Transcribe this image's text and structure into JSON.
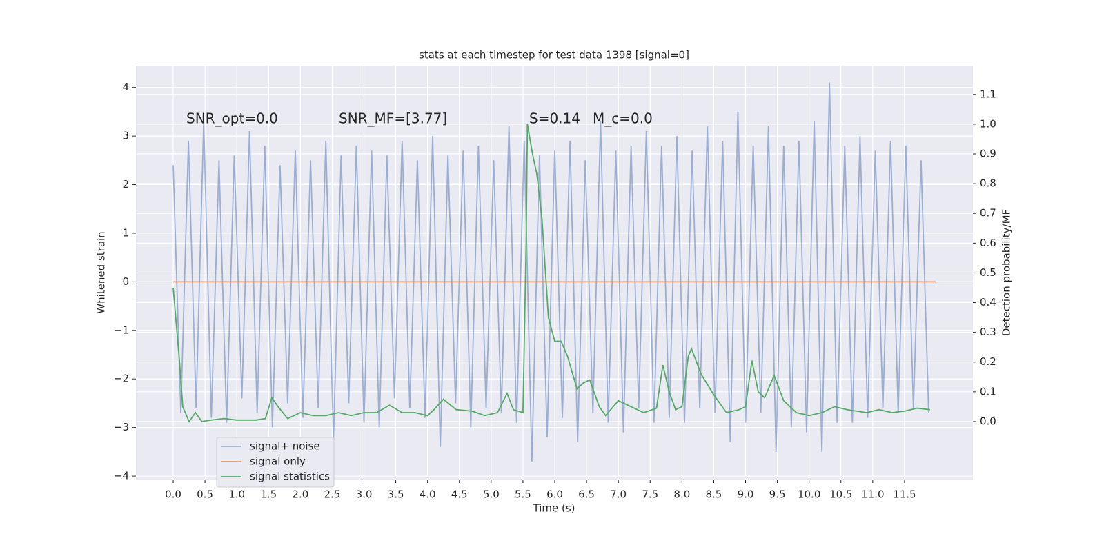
{
  "chart_data": {
    "type": "line",
    "title": "stats at each timestep for test data 1398 [signal=0]",
    "x_label": "Time (s)",
    "y_label": "Whitened strain",
    "y2_label": "Detection probability/MF",
    "annotations": [
      "SNR_opt=0.0",
      "SNR_MF=[3.77]",
      "S=0.14",
      "M_c=0.0"
    ],
    "xlim": [
      -0.586,
      12.575
    ],
    "ylim": [
      -4.07,
      4.45
    ],
    "y2lim": [
      -0.195,
      1.197
    ],
    "xticks": [
      {
        "value": 0,
        "label": "0.0"
      },
      0.5,
      {
        "value": 1,
        "label": "1.0"
      },
      1.5,
      {
        "value": 2,
        "label": "2.0"
      },
      2.5,
      {
        "value": 3,
        "label": "3.0"
      },
      3.5,
      {
        "value": 4,
        "label": "4.0"
      },
      4.5,
      {
        "value": 5,
        "label": "5.0"
      },
      5.5,
      {
        "value": 6,
        "label": "6.0"
      },
      6.5,
      {
        "value": 7,
        "label": "7.0"
      },
      7.5,
      {
        "value": 8,
        "label": "8.0"
      },
      8.5,
      {
        "value": 9,
        "label": "9.0"
      },
      9.5,
      {
        "value": 10,
        "label": "10.0"
      },
      10.5,
      {
        "value": 11,
        "label": "11.0"
      },
      11.5
    ],
    "yticks": [
      {
        "value": -4,
        "label": "−4"
      },
      {
        "value": -3,
        "label": "−3"
      },
      {
        "value": -2,
        "label": "−2"
      },
      {
        "value": -1,
        "label": "−1"
      },
      0,
      1,
      2,
      3,
      4
    ],
    "y2ticks": [
      {
        "value": 0,
        "label": "0.0"
      },
      0.1,
      0.2,
      0.3,
      0.4,
      0.5,
      0.6,
      0.7,
      0.8,
      0.9,
      {
        "value": 1,
        "label": "1.0"
      },
      1.1
    ],
    "grid": true,
    "legend": "lower left",
    "series": [
      {
        "name": "signal+ noise",
        "color": "#4c72b0",
        "opacity": 0.5,
        "x": [
          0,
          0.12,
          0.24,
          0.36,
          0.48,
          0.6,
          0.72,
          0.84,
          0.96,
          1.08,
          1.2,
          1.32,
          1.44,
          1.56,
          1.68,
          1.8,
          1.92,
          2.04,
          2.16,
          2.28,
          2.4,
          2.52,
          2.64,
          2.76,
          2.88,
          3.0,
          3.12,
          3.24,
          3.36,
          3.48,
          3.6,
          3.72,
          3.84,
          3.96,
          4.08,
          4.2,
          4.32,
          4.44,
          4.56,
          4.68,
          4.8,
          4.92,
          5.04,
          5.16,
          5.28,
          5.4,
          5.52,
          5.64,
          5.76,
          5.88,
          6.0,
          6.12,
          6.24,
          6.36,
          6.48,
          6.6,
          6.72,
          6.84,
          6.96,
          7.08,
          7.2,
          7.32,
          7.44,
          7.56,
          7.68,
          7.8,
          7.92,
          8.04,
          8.16,
          8.28,
          8.4,
          8.52,
          8.64,
          8.76,
          8.88,
          9.0,
          9.12,
          9.24,
          9.36,
          9.48,
          9.6,
          9.72,
          9.84,
          9.96,
          10.08,
          10.2,
          10.32,
          10.44,
          10.56,
          10.68,
          10.8,
          10.92,
          11.04,
          11.16,
          11.28,
          11.4,
          11.52,
          11.64,
          11.76,
          11.88
        ],
        "values": [
          2.4,
          -2.7,
          2.9,
          -2.6,
          3.3,
          -2.8,
          2.5,
          -2.9,
          2.6,
          -2.4,
          3.1,
          -2.7,
          2.8,
          -3.0,
          2.4,
          -2.5,
          2.7,
          -2.8,
          2.5,
          -2.6,
          2.9,
          -3.3,
          2.6,
          -2.5,
          2.8,
          -2.9,
          2.7,
          -3.0,
          2.6,
          -2.4,
          2.9,
          -2.6,
          2.5,
          -2.8,
          3.0,
          -3.4,
          2.6,
          -2.5,
          2.7,
          -3.0,
          2.8,
          -2.6,
          2.5,
          -2.7,
          3.2,
          -2.9,
          2.9,
          -3.7,
          2.6,
          -3.2,
          2.7,
          -2.8,
          2.9,
          -3.3,
          2.5,
          -2.7,
          3.3,
          -2.9,
          2.7,
          -3.1,
          2.8,
          -2.6,
          3.1,
          -2.9,
          2.8,
          -2.8,
          3.0,
          -2.9,
          2.7,
          -2.6,
          3.2,
          -2.7,
          2.9,
          -3.3,
          3.5,
          -2.9,
          2.8,
          -2.7,
          3.2,
          -3.5,
          2.8,
          -3.0,
          2.9,
          -3.1,
          3.3,
          -3.5,
          4.1,
          -2.9,
          2.8,
          -2.9,
          3.0,
          -2.8,
          2.7,
          -2.6,
          2.9,
          -2.7,
          2.8,
          -2.6,
          2.5,
          -2.7
        ]
      },
      {
        "name": "signal only",
        "color": "#dd8452",
        "opacity": 0.8,
        "x": [
          0,
          11.99
        ],
        "values": [
          0,
          0
        ]
      },
      {
        "name": "signal statistics",
        "color": "#55a868",
        "opacity": 1,
        "axis": "y2",
        "x": [
          0,
          0.1,
          0.15,
          0.25,
          0.35,
          0.45,
          0.6,
          0.8,
          1.0,
          1.3,
          1.45,
          1.55,
          1.65,
          1.8,
          2.0,
          2.2,
          2.4,
          2.6,
          2.8,
          3.0,
          3.2,
          3.4,
          3.6,
          3.8,
          4.0,
          4.1,
          4.25,
          4.45,
          4.7,
          4.9,
          5.1,
          5.25,
          5.35,
          5.5,
          5.55,
          5.57,
          5.65,
          5.72,
          5.8,
          5.9,
          6.0,
          6.1,
          6.2,
          6.35,
          6.45,
          6.55,
          6.7,
          6.8,
          7.0,
          7.2,
          7.4,
          7.6,
          7.7,
          7.8,
          7.9,
          8.0,
          8.1,
          8.15,
          8.3,
          8.5,
          8.7,
          8.9,
          9.0,
          9.1,
          9.2,
          9.3,
          9.45,
          9.6,
          9.8,
          10.0,
          10.2,
          10.4,
          10.6,
          10.9,
          11.1,
          11.3,
          11.5,
          11.7,
          11.9
        ],
        "values": [
          0.45,
          0.2,
          0.05,
          0.0,
          0.03,
          0.0,
          0.005,
          0.01,
          0.005,
          0.005,
          0.01,
          0.08,
          0.05,
          0.01,
          0.03,
          0.02,
          0.02,
          0.03,
          0.02,
          0.03,
          0.03,
          0.055,
          0.03,
          0.03,
          0.02,
          0.04,
          0.075,
          0.04,
          0.035,
          0.02,
          0.03,
          0.095,
          0.04,
          0.03,
          0.6,
          1.0,
          0.9,
          0.83,
          0.68,
          0.35,
          0.27,
          0.27,
          0.22,
          0.11,
          0.13,
          0.14,
          0.05,
          0.02,
          0.07,
          0.05,
          0.03,
          0.045,
          0.19,
          0.1,
          0.04,
          0.05,
          0.22,
          0.245,
          0.16,
          0.09,
          0.03,
          0.04,
          0.05,
          0.205,
          0.1,
          0.08,
          0.155,
          0.07,
          0.03,
          0.02,
          0.03,
          0.05,
          0.04,
          0.03,
          0.04,
          0.03,
          0.035,
          0.045,
          0.04
        ]
      }
    ]
  }
}
